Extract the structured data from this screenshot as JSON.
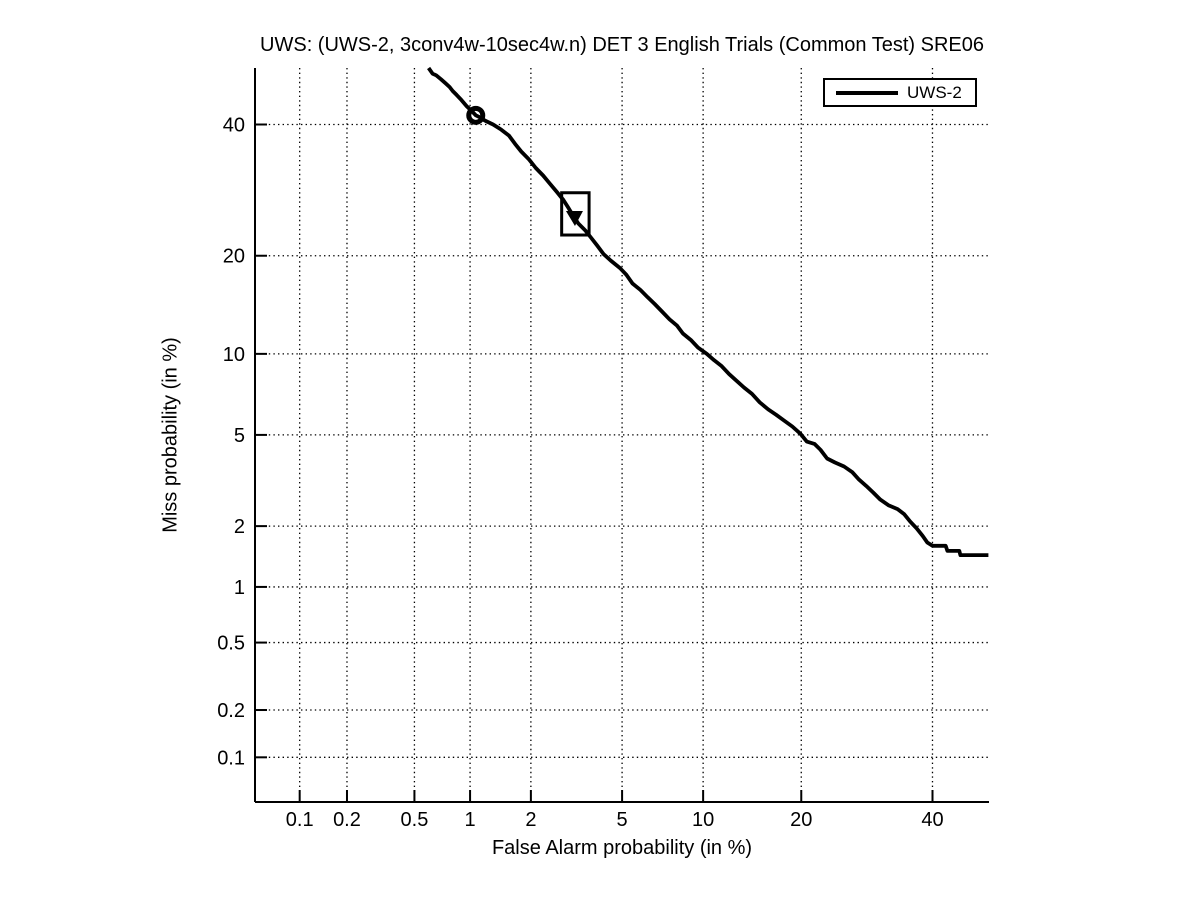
{
  "figure": {
    "background_color": "#ffffff",
    "line_color": "#000000",
    "grid_style": "dotted"
  },
  "chart_data": {
    "type": "line",
    "subtype": "DET-curve",
    "title": "UWS: (UWS-2, 3conv4w-10sec4w.n) DET 3 English Trials (Common Test) SRE06",
    "xlabel": "False Alarm probability (in %)",
    "ylabel": "Miss probability (in %)",
    "x_scale": "probit-percent",
    "y_scale": "probit-percent",
    "x_range": [
      0.05,
      50
    ],
    "y_range": [
      0.05,
      50
    ],
    "x_ticks": [
      0.1,
      0.2,
      0.5,
      1,
      2,
      5,
      10,
      20,
      40
    ],
    "y_ticks": [
      40,
      20,
      10,
      5,
      2,
      1,
      0.5,
      0.2,
      0.1
    ],
    "grid": "on",
    "legend": {
      "position": "top-right",
      "entries": [
        "UWS-2"
      ]
    },
    "series": [
      {
        "name": "UWS-2",
        "color": "#000000",
        "line_width": 3.8,
        "points": [
          [
            0.6,
            50.0
          ],
          [
            0.63,
            49.0
          ],
          [
            0.66,
            48.7
          ],
          [
            0.7,
            48.0
          ],
          [
            0.74,
            47.3
          ],
          [
            0.78,
            46.6
          ],
          [
            0.81,
            45.9
          ],
          [
            0.85,
            45.2
          ],
          [
            0.89,
            44.5
          ],
          [
            0.96,
            43.2
          ],
          [
            1.03,
            42.2
          ],
          [
            1.07,
            41.6
          ],
          [
            1.13,
            41.2
          ],
          [
            1.19,
            40.7
          ],
          [
            1.31,
            40.0
          ],
          [
            1.44,
            39.1
          ],
          [
            1.57,
            38.1
          ],
          [
            1.68,
            36.7
          ],
          [
            1.8,
            35.4
          ],
          [
            1.96,
            34.1
          ],
          [
            2.11,
            32.7
          ],
          [
            2.28,
            31.5
          ],
          [
            2.45,
            30.2
          ],
          [
            2.64,
            28.9
          ],
          [
            2.82,
            27.7
          ],
          [
            2.96,
            26.6
          ],
          [
            3.14,
            25.2
          ],
          [
            3.28,
            24.3
          ],
          [
            3.52,
            23.3
          ],
          [
            3.73,
            22.3
          ],
          [
            3.95,
            21.3
          ],
          [
            4.2,
            20.2
          ],
          [
            4.5,
            19.4
          ],
          [
            4.9,
            18.5
          ],
          [
            5.2,
            17.7
          ],
          [
            5.5,
            16.7
          ],
          [
            5.9,
            16.0
          ],
          [
            6.3,
            15.2
          ],
          [
            6.7,
            14.5
          ],
          [
            7.1,
            13.8
          ],
          [
            7.6,
            13.0
          ],
          [
            8.1,
            12.4
          ],
          [
            8.5,
            11.7
          ],
          [
            9.1,
            11.1
          ],
          [
            9.6,
            10.5
          ],
          [
            10.3,
            10.0
          ],
          [
            10.9,
            9.5
          ],
          [
            11.5,
            9.1
          ],
          [
            12.2,
            8.5
          ],
          [
            12.8,
            8.1
          ],
          [
            13.6,
            7.6
          ],
          [
            14.4,
            7.2
          ],
          [
            15.2,
            6.7
          ],
          [
            16.1,
            6.3
          ],
          [
            17.0,
            6.0
          ],
          [
            17.9,
            5.7
          ],
          [
            18.9,
            5.4
          ],
          [
            19.9,
            5.05
          ],
          [
            20.7,
            4.7
          ],
          [
            21.7,
            4.6
          ],
          [
            22.5,
            4.35
          ],
          [
            23.4,
            4.0
          ],
          [
            24.5,
            3.85
          ],
          [
            25.8,
            3.7
          ],
          [
            27.0,
            3.5
          ],
          [
            28.0,
            3.25
          ],
          [
            29.1,
            3.05
          ],
          [
            30.2,
            2.85
          ],
          [
            31.3,
            2.65
          ],
          [
            32.6,
            2.5
          ],
          [
            34.1,
            2.4
          ],
          [
            35.2,
            2.27
          ],
          [
            36.2,
            2.1
          ],
          [
            37.3,
            1.95
          ],
          [
            38.3,
            1.8
          ],
          [
            39.1,
            1.67
          ],
          [
            40.0,
            1.61
          ],
          [
            42.3,
            1.61
          ],
          [
            42.6,
            1.52
          ],
          [
            44.7,
            1.52
          ],
          [
            44.9,
            1.45
          ],
          [
            49.9,
            1.45
          ]
        ]
      }
    ],
    "markers": [
      {
        "name": "operating-point-circle",
        "shape": "open-circle",
        "fa": 1.07,
        "miss": 41.6
      },
      {
        "name": "min-dcf-point",
        "shape": "filled-triangle-down",
        "fa": 3.14,
        "miss": 25.2
      },
      {
        "name": "min-dcf-box",
        "shape": "rectangle",
        "fa_range": [
          2.77,
          3.65
        ],
        "miss_range": [
          22.7,
          28.8
        ]
      }
    ]
  }
}
